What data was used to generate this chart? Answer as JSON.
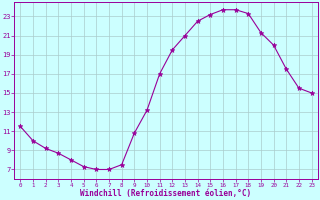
{
  "x": [
    0,
    1,
    2,
    3,
    4,
    5,
    6,
    7,
    8,
    9,
    10,
    11,
    12,
    13,
    14,
    15,
    16,
    17,
    18,
    19,
    20,
    21,
    22,
    23
  ],
  "y": [
    11.5,
    10.0,
    9.2,
    8.7,
    8.0,
    7.3,
    7.0,
    7.0,
    7.5,
    10.8,
    13.2,
    17.0,
    19.5,
    21.0,
    22.5,
    23.2,
    23.7,
    23.7,
    23.3,
    21.3,
    20.0,
    17.5,
    15.5,
    15.0
  ],
  "line_color": "#990099",
  "marker": "*",
  "marker_size": 3.5,
  "bg_color": "#ccffff",
  "grid_color": "#aacccc",
  "xlabel": "Windchill (Refroidissement éolien,°C)",
  "xlabel_color": "#990099",
  "tick_color": "#990099",
  "ytick_labels": [
    "7",
    "9",
    "11",
    "13",
    "15",
    "17",
    "19",
    "21",
    "23"
  ],
  "ytick_values": [
    7,
    9,
    11,
    13,
    15,
    17,
    19,
    21,
    23
  ],
  "xtick_values": [
    0,
    1,
    2,
    3,
    4,
    5,
    6,
    7,
    8,
    9,
    10,
    11,
    12,
    13,
    14,
    15,
    16,
    17,
    18,
    19,
    20,
    21,
    22,
    23
  ],
  "ylim": [
    6.0,
    24.5
  ],
  "xlim": [
    -0.5,
    23.5
  ]
}
